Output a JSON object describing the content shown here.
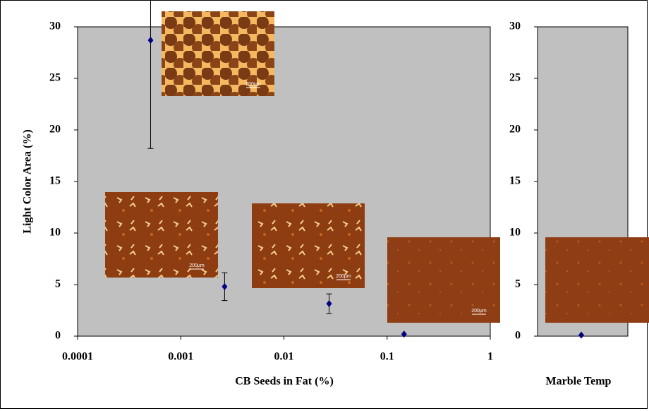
{
  "chart_data": [
    {
      "type": "scatter",
      "log_x": true,
      "color": "#000080",
      "x": [
        0.00051,
        0.00266,
        0.0274,
        0.146
      ],
      "series": [
        {
          "values": [
            28.7,
            4.8,
            3.15,
            0.2
          ],
          "errors": [
            10.5,
            1.35,
            0.95,
            0
          ]
        }
      ],
      "xlim": [
        0.0001,
        1
      ],
      "xticks": [
        0.0001,
        0.001,
        0.01,
        0.1,
        1
      ],
      "ylim": [
        0,
        30
      ],
      "yticks": [
        0,
        5,
        10,
        15,
        20,
        25,
        30
      ],
      "x_label": "CB Seeds in Fat (%)",
      "y_label": "Light Color Area (%)",
      "annotations": [
        "200µm",
        "200µm",
        "200µm",
        "200µm"
      ]
    },
    {
      "type": "strip",
      "color": "#000080",
      "values": [
        0.1
      ],
      "ylim": [
        0,
        30
      ],
      "yticks": [
        0,
        5,
        10,
        15,
        20,
        25,
        30
      ],
      "x_label": "Marble Temp"
    }
  ]
}
